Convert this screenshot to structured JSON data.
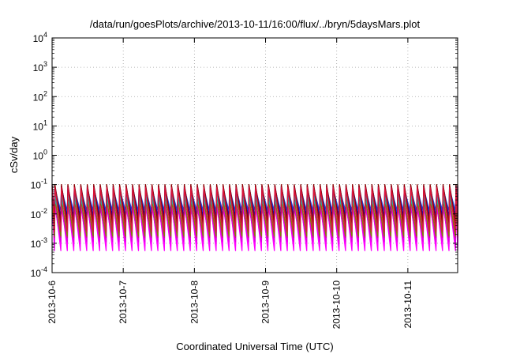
{
  "chart_data": {
    "type": "line",
    "title": "/data/run/goesPlots/archive/2013-10-11/16:00/flux/../bryn/5daysMars.plot",
    "xlabel": "Coordinated Universal Time (UTC)",
    "ylabel": "cSv/day",
    "yscale": "log",
    "ylim_exponents": [
      -4,
      4
    ],
    "y_tick_base": "10",
    "y_tick_exponents": [
      "-4",
      "-3",
      "-2",
      "-1",
      "0",
      "1",
      "2",
      "3",
      "4"
    ],
    "x_ticks": [
      "2013-10-6",
      "2013-10-7",
      "2013-10-8",
      "2013-10-9",
      "2013-10-10",
      "2013-10-11"
    ],
    "xlim_days": [
      0,
      5.7
    ],
    "grid": true,
    "pattern": {
      "cycles_per_day": 11,
      "phase_days": 0.04
    },
    "series_count": 12,
    "series": [
      {
        "color": "#ff00ff",
        "peak_exp": -1.55,
        "trough_exp": -3.25
      },
      {
        "color": "#ff00ff",
        "peak_exp": -1.65,
        "trough_exp": -3.1
      },
      {
        "color": "#e000e0",
        "peak_exp": -1.75,
        "trough_exp": -2.95
      },
      {
        "color": "#c71585",
        "peak_exp": -1.45,
        "trough_exp": -2.8
      },
      {
        "color": "#808000",
        "peak_exp": -1.5,
        "trough_exp": -2.75
      },
      {
        "color": "#228b22",
        "peak_exp": -1.3,
        "trough_exp": -2.4
      },
      {
        "color": "#00ced1",
        "peak_exp": -1.35,
        "trough_exp": -2.2
      },
      {
        "color": "#20b2aa",
        "peak_exp": -1.55,
        "trough_exp": -2.05
      },
      {
        "color": "#0000cd",
        "peak_exp": -1.05,
        "trough_exp": -2.1
      },
      {
        "color": "#1e3fdd",
        "peak_exp": -1.15,
        "trough_exp": -1.9
      },
      {
        "color": "#8b0000",
        "peak_exp": -1.0,
        "trough_exp": -2.3
      },
      {
        "color": "#dc143c",
        "peak_exp": -1.1,
        "trough_exp": -2.6
      }
    ]
  }
}
